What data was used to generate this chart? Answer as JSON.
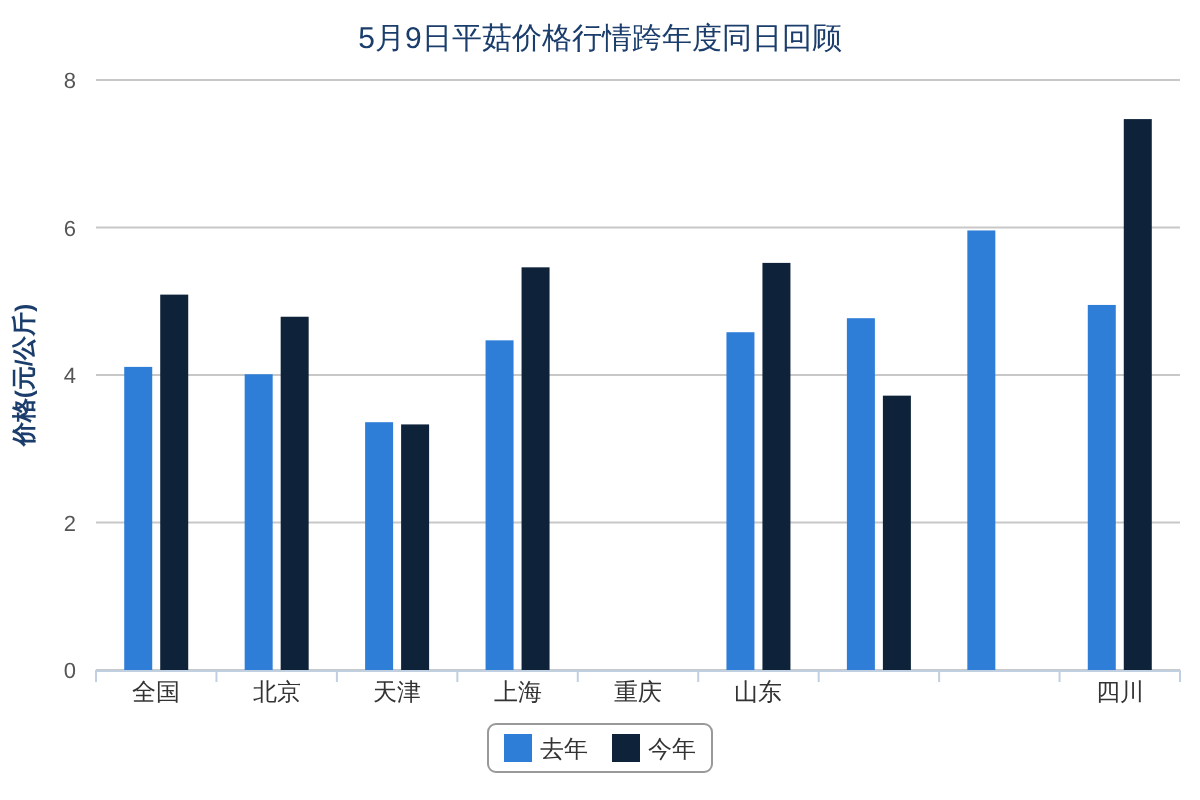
{
  "chart_data": {
    "type": "bar",
    "title": "5月9日平菇价格行情跨年度同日回顾",
    "ylabel": "价格(元/公斤)",
    "categories": [
      "全国",
      "北京",
      "天津",
      "上海",
      "重庆",
      "山东",
      null,
      null,
      "四川"
    ],
    "series": [
      {
        "name": "去年",
        "color": "#2e7ed8",
        "values": [
          4.11,
          4.01,
          3.36,
          4.47,
          null,
          4.58,
          4.77,
          5.96,
          4.95
        ]
      },
      {
        "name": "今年",
        "color": "#0e2239",
        "values": [
          5.09,
          4.79,
          3.33,
          5.46,
          null,
          5.52,
          3.72,
          null,
          7.47
        ]
      }
    ],
    "ylim": [
      0,
      8
    ],
    "yticks": [
      0,
      2,
      4,
      6,
      8
    ],
    "grid": "y",
    "legend": "bottom"
  }
}
